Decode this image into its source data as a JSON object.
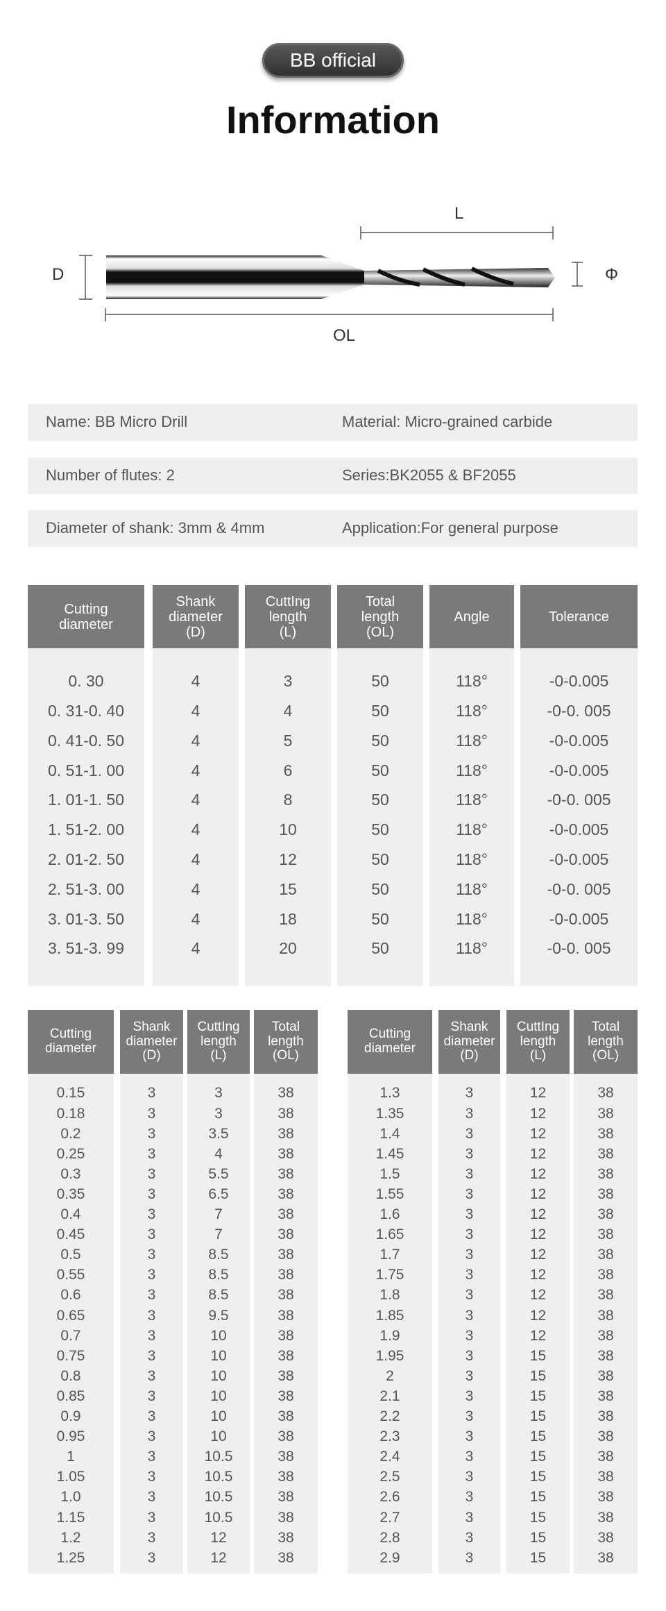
{
  "badge": "BB official",
  "title": "Information",
  "diagram": {
    "L": "L",
    "D": "D",
    "phi": "Φ",
    "OL": "OL"
  },
  "info_rows": [
    {
      "left": "Name: BB Micro Drill",
      "right": "Material: Micro-grained carbide"
    },
    {
      "left": "Number of flutes: 2",
      "right": "Series:BK2055 & BF2055"
    },
    {
      "left": "Diameter of shank: 3mm & 4mm",
      "right": "Application:For general purpose"
    }
  ],
  "colors": {
    "header_bg": "#7a7a7a",
    "cell_bg": "#efefef",
    "text": "#555555"
  },
  "table_4mm": {
    "headers": [
      "Cutting\ndiameter",
      "Shank\ndiameter\n(D)",
      "CuttIng\nlength\n(L)",
      "Total\nlength\n(OL)",
      "Angle",
      "Tolerance"
    ],
    "rows": [
      [
        "0. 30",
        "4",
        "3",
        "50",
        "118°",
        "-0-0.005"
      ],
      [
        "0. 31-0. 40",
        "4",
        "4",
        "50",
        "118°",
        "-0-0. 005"
      ],
      [
        "0. 41-0. 50",
        "4",
        "5",
        "50",
        "118°",
        "-0-0.005"
      ],
      [
        "0. 51-1. 00",
        "4",
        "6",
        "50",
        "118°",
        "-0-0.005"
      ],
      [
        "1. 01-1. 50",
        "4",
        "8",
        "50",
        "118°",
        "-0-0. 005"
      ],
      [
        "1. 51-2. 00",
        "4",
        "10",
        "50",
        "118°",
        "-0-0.005"
      ],
      [
        "2. 01-2. 50",
        "4",
        "12",
        "50",
        "118°",
        "-0-0.005"
      ],
      [
        "2. 51-3. 00",
        "4",
        "15",
        "50",
        "118°",
        "-0-0. 005"
      ],
      [
        "3. 01-3. 50",
        "4",
        "18",
        "50",
        "118°",
        "-0-0.005"
      ],
      [
        "3. 51-3. 99",
        "4",
        "20",
        "50",
        "118°",
        "-0-0. 005"
      ]
    ]
  },
  "table_3mm_left": {
    "headers": [
      "Cutting\ndiameter",
      "Shank\ndiameter\n(D)",
      "CuttIng\nlength\n(L)",
      "Total\nlength\n(OL)"
    ],
    "rows": [
      [
        "0.15",
        "3",
        "3",
        "38"
      ],
      [
        "0.18",
        "3",
        "3",
        "38"
      ],
      [
        "0.2",
        "3",
        "3.5",
        "38"
      ],
      [
        "0.25",
        "3",
        "4",
        "38"
      ],
      [
        "0.3",
        "3",
        "5.5",
        "38"
      ],
      [
        "0.35",
        "3",
        "6.5",
        "38"
      ],
      [
        "0.4",
        "3",
        "7",
        "38"
      ],
      [
        "0.45",
        "3",
        "7",
        "38"
      ],
      [
        "0.5",
        "3",
        "8.5",
        "38"
      ],
      [
        "0.55",
        "3",
        "8.5",
        "38"
      ],
      [
        "0.6",
        "3",
        "8.5",
        "38"
      ],
      [
        "0.65",
        "3",
        "9.5",
        "38"
      ],
      [
        "0.7",
        "3",
        "10",
        "38"
      ],
      [
        "0.75",
        "3",
        "10",
        "38"
      ],
      [
        "0.8",
        "3",
        "10",
        "38"
      ],
      [
        "0.85",
        "3",
        "10",
        "38"
      ],
      [
        "0.9",
        "3",
        "10",
        "38"
      ],
      [
        "0.95",
        "3",
        "10",
        "38"
      ],
      [
        "1",
        "3",
        "10.5",
        "38"
      ],
      [
        "1.05",
        "3",
        "10.5",
        "38"
      ],
      [
        "1.0",
        "3",
        "10.5",
        "38"
      ],
      [
        "1.15",
        "3",
        "10.5",
        "38"
      ],
      [
        "1.2",
        "3",
        "12",
        "38"
      ],
      [
        "1.25",
        "3",
        "12",
        "38"
      ]
    ]
  },
  "table_3mm_right": {
    "headers": [
      "Cutting\ndiameter",
      "Shank\ndiameter\n(D)",
      "CuttIng\nlength\n(L)",
      "Total\nlength\n(OL)"
    ],
    "rows": [
      [
        "1.3",
        "3",
        "12",
        "38"
      ],
      [
        "1.35",
        "3",
        "12",
        "38"
      ],
      [
        "1.4",
        "3",
        "12",
        "38"
      ],
      [
        "1.45",
        "3",
        "12",
        "38"
      ],
      [
        "1.5",
        "3",
        "12",
        "38"
      ],
      [
        "1.55",
        "3",
        "12",
        "38"
      ],
      [
        "1.6",
        "3",
        "12",
        "38"
      ],
      [
        "1.65",
        "3",
        "12",
        "38"
      ],
      [
        "1.7",
        "3",
        "12",
        "38"
      ],
      [
        "1.75",
        "3",
        "12",
        "38"
      ],
      [
        "1.8",
        "3",
        "12",
        "38"
      ],
      [
        "1.85",
        "3",
        "12",
        "38"
      ],
      [
        "1.9",
        "3",
        "12",
        "38"
      ],
      [
        "1.95",
        "3",
        "15",
        "38"
      ],
      [
        "2",
        "3",
        "15",
        "38"
      ],
      [
        "2.1",
        "3",
        "15",
        "38"
      ],
      [
        "2.2",
        "3",
        "15",
        "38"
      ],
      [
        "2.3",
        "3",
        "15",
        "38"
      ],
      [
        "2.4",
        "3",
        "15",
        "38"
      ],
      [
        "2.5",
        "3",
        "15",
        "38"
      ],
      [
        "2.6",
        "3",
        "15",
        "38"
      ],
      [
        "2.7",
        "3",
        "15",
        "38"
      ],
      [
        "2.8",
        "3",
        "15",
        "38"
      ],
      [
        "2.9",
        "3",
        "15",
        "38"
      ]
    ]
  }
}
